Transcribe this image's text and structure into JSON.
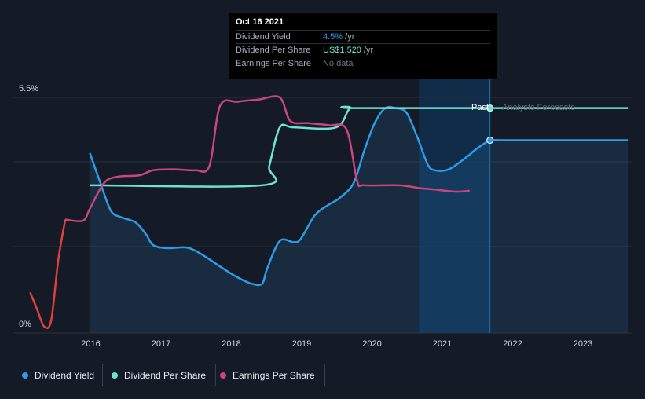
{
  "tooltip": {
    "date": "Oct 16 2021",
    "rows": [
      {
        "label": "Dividend Yield",
        "value": "4.5%",
        "unit": " /yr"
      },
      {
        "label": "Dividend Per Share",
        "value": "US$1.520",
        "unit": " /yr"
      },
      {
        "label": "Earnings Per Share",
        "value": "No data",
        "unit": ""
      }
    ]
  },
  "labels": {
    "past": "Past",
    "forecast": "Analysts Forecasts"
  },
  "legend": [
    {
      "label": "Dividend Yield",
      "color": "#2f9ae8"
    },
    {
      "label": "Dividend Per Share",
      "color": "#6fe3d0"
    },
    {
      "label": "Earnings Per Share",
      "color": "#c9457e"
    }
  ],
  "chart_data": {
    "type": "line",
    "y_tick_labels": [
      "5.5%",
      "0%"
    ],
    "ylim": [
      0,
      5.5
    ],
    "x_tick_labels": [
      "2016",
      "2017",
      "2018",
      "2019",
      "2020",
      "2021",
      "2022",
      "2023"
    ],
    "xlim": [
      2015.0,
      2023.75
    ],
    "grid": true,
    "legend_position": "bottom-left",
    "colors": {
      "background": "#151b26",
      "highlight_band": "#0f3a66",
      "eps_negative": "#e0413c"
    },
    "series": [
      {
        "name": "Dividend Yield",
        "color": "#2f9ae8",
        "filled": true,
        "points": [
          [
            2016.1,
            4.2
          ],
          [
            2016.25,
            3.5
          ],
          [
            2016.4,
            2.85
          ],
          [
            2016.55,
            2.7
          ],
          [
            2016.75,
            2.58
          ],
          [
            2016.9,
            2.3
          ],
          [
            2017.0,
            2.05
          ],
          [
            2017.2,
            1.98
          ],
          [
            2017.45,
            2.0
          ],
          [
            2017.6,
            1.92
          ],
          [
            2017.8,
            1.72
          ],
          [
            2018.0,
            1.5
          ],
          [
            2018.2,
            1.3
          ],
          [
            2018.4,
            1.15
          ],
          [
            2018.55,
            1.15
          ],
          [
            2018.62,
            1.5
          ],
          [
            2018.8,
            2.15
          ],
          [
            2019.0,
            2.12
          ],
          [
            2019.1,
            2.2
          ],
          [
            2019.3,
            2.75
          ],
          [
            2019.5,
            3.0
          ],
          [
            2019.65,
            3.15
          ],
          [
            2019.85,
            3.5
          ],
          [
            2020.0,
            4.25
          ],
          [
            2020.15,
            4.9
          ],
          [
            2020.3,
            5.25
          ],
          [
            2020.45,
            5.25
          ],
          [
            2020.6,
            5.15
          ],
          [
            2020.75,
            4.6
          ],
          [
            2020.9,
            3.95
          ],
          [
            2021.0,
            3.8
          ],
          [
            2021.2,
            3.82
          ],
          [
            2021.45,
            4.1
          ],
          [
            2021.6,
            4.3
          ],
          [
            2021.8,
            4.5
          ],
          [
            2022.0,
            4.5
          ],
          [
            2023.75,
            4.5
          ]
        ]
      },
      {
        "name": "Dividend Per Share",
        "color": "#6fe3d0",
        "filled": false,
        "points": [
          [
            2016.1,
            3.45
          ],
          [
            2018.55,
            3.45
          ],
          [
            2018.65,
            3.9
          ],
          [
            2018.8,
            4.8
          ],
          [
            2019.0,
            4.8
          ],
          [
            2019.6,
            4.8
          ],
          [
            2019.8,
            5.25
          ],
          [
            2020.0,
            5.25
          ],
          [
            2023.75,
            5.25
          ]
        ]
      },
      {
        "name": "Earnings Per Share",
        "color": "#c9457e",
        "filled": false,
        "points": [
          [
            2015.25,
            0.95
          ],
          [
            2015.35,
            0.55
          ],
          [
            2015.45,
            0.15
          ],
          [
            2015.55,
            0.3
          ],
          [
            2015.65,
            1.7
          ],
          [
            2015.75,
            2.65
          ],
          [
            2016.0,
            2.62
          ],
          [
            2016.1,
            2.9
          ],
          [
            2016.3,
            3.5
          ],
          [
            2016.5,
            3.65
          ],
          [
            2016.8,
            3.68
          ],
          [
            2017.0,
            3.8
          ],
          [
            2017.3,
            3.82
          ],
          [
            2017.6,
            3.8
          ],
          [
            2017.8,
            3.9
          ],
          [
            2017.95,
            5.3
          ],
          [
            2018.2,
            5.4
          ],
          [
            2018.5,
            5.45
          ],
          [
            2018.8,
            5.5
          ],
          [
            2018.95,
            4.95
          ],
          [
            2019.2,
            4.9
          ],
          [
            2019.5,
            4.85
          ],
          [
            2019.75,
            4.75
          ],
          [
            2019.9,
            3.55
          ],
          [
            2020.0,
            3.45
          ],
          [
            2020.5,
            3.45
          ],
          [
            2020.8,
            3.38
          ],
          [
            2021.0,
            3.35
          ],
          [
            2021.3,
            3.3
          ],
          [
            2021.5,
            3.32
          ]
        ]
      }
    ]
  }
}
